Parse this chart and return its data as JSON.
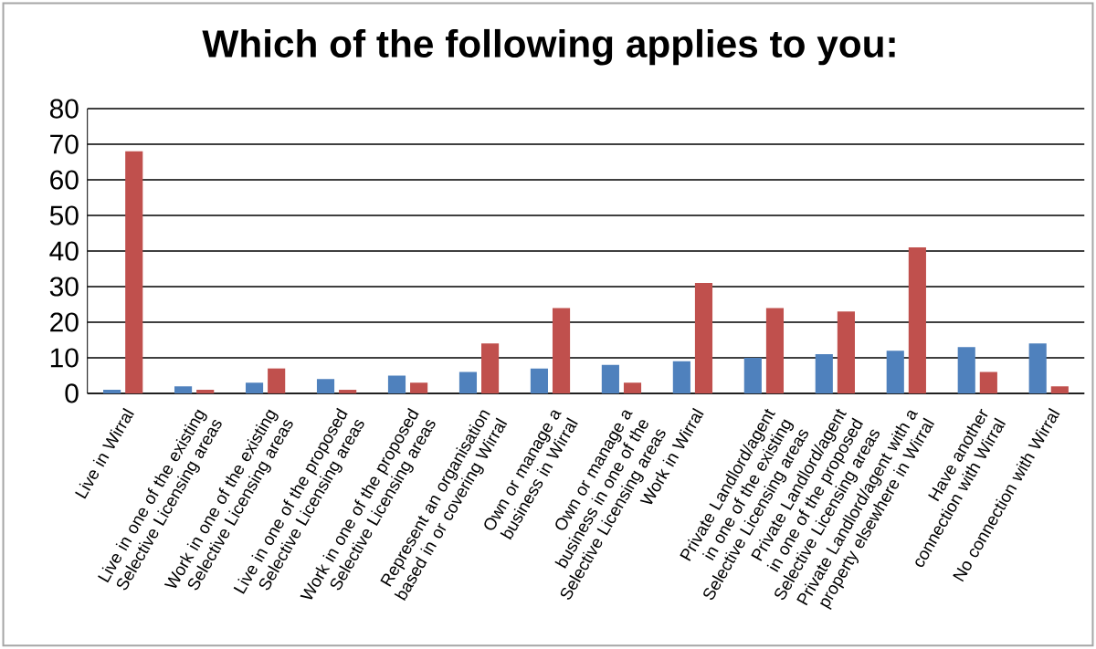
{
  "chart_data": {
    "type": "bar",
    "title": "Which of the following applies to you:",
    "categories": [
      "Live in Wirral",
      "Live in one of the existing Selective Licensing areas",
      "Work in one of the existing Selective Licensing areas",
      "Live in one of the proposed Selective Licensing areas",
      "Work in one of the proposed Selective Licensing areas",
      "Represent an organisation based in or covering Wirral",
      "Own or manage a business in Wirral",
      "Own or manage a business in one of the Selective Licensing areas",
      "Work in Wirral",
      "Private Landlord/agent in one of the existing Selective Licensing areas",
      "Private Landlord/agent in one of the proposed Selective Licensing areas",
      "Private Landlord/agent with a property elsewhere in Wirral",
      "Have another connection with Wirral",
      "No connection with Wirral"
    ],
    "series": [
      {
        "color": "#4f81bd",
        "values": [
          1,
          2,
          3,
          4,
          5,
          6,
          7,
          8,
          9,
          10,
          11,
          12,
          13,
          14
        ]
      },
      {
        "color": "#c0504d",
        "values": [
          68,
          1,
          7,
          1,
          3,
          14,
          24,
          3,
          31,
          24,
          23,
          41,
          6,
          2
        ]
      }
    ],
    "ylim": [
      0,
      80
    ],
    "yticks": [
      0,
      10,
      20,
      30,
      40,
      50,
      60,
      70,
      80
    ],
    "grid": "y",
    "legend": false
  }
}
